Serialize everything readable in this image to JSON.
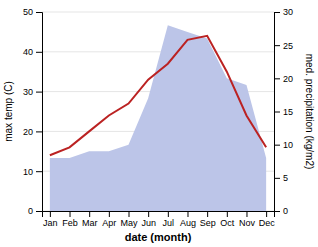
{
  "chart_data": {
    "type": "line",
    "categories": [
      "Jan",
      "Feb",
      "Mar",
      "Apr",
      "May",
      "Jun",
      "Jul",
      "Aug",
      "Sep",
      "Oct",
      "Nov",
      "Dec"
    ],
    "series": [
      {
        "type": "area",
        "axis": "y2",
        "color": "#bcc5e8",
        "values": [
          8,
          8,
          9,
          9,
          10,
          17,
          28,
          27,
          26,
          20,
          19,
          8
        ]
      },
      {
        "type": "line",
        "color": "#bb2222",
        "values": [
          14,
          16,
          20,
          24,
          27,
          33,
          37,
          43,
          44,
          35,
          24,
          16
        ]
      }
    ],
    "x_label": "date (month)",
    "y_label": "max temp (C)",
    "y2_label": "med. precipitation (kg/m2)",
    "ylim": [
      0,
      50
    ],
    "yticks": [
      0,
      10,
      20,
      30,
      40,
      50
    ],
    "y2lim": [
      0,
      30
    ],
    "y2ticks": [
      0,
      5,
      10,
      15,
      20,
      25,
      30
    ],
    "grid": true
  }
}
